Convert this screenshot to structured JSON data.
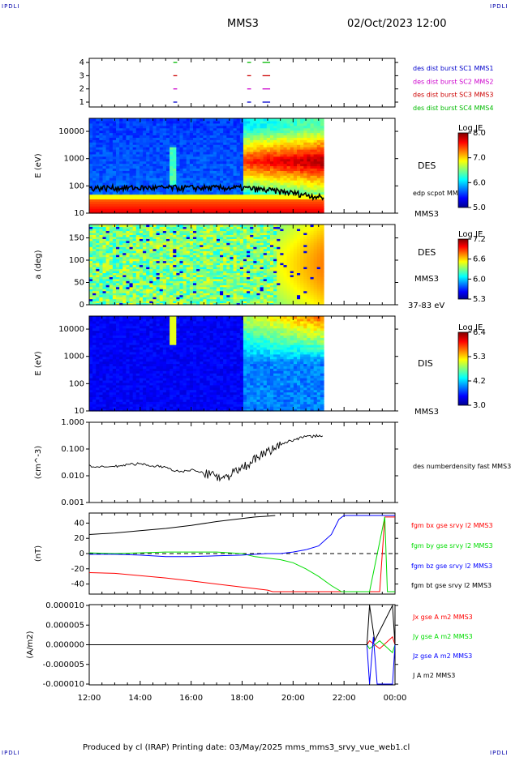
{
  "header": {
    "logo": "IPDLI",
    "spacecraft": "MMS3",
    "datetime": "02/Oct/2023 12:00"
  },
  "footer": {
    "text": "Produced by cl (IRAP)   Printing date: 03/May/2025   mms_mms3_srvy_vue_web1.cl"
  },
  "colors": {
    "burst_c1": "#0000cc",
    "burst_c2": "#cc00cc",
    "burst_c3": "#cc0000",
    "burst_c4": "#00bb00",
    "bx": "#ff0000",
    "by": "#00dd00",
    "bz": "#0000ff",
    "bt": "#000000"
  },
  "time_axis": {
    "ticks": [
      "12:00",
      "14:00",
      "16:00",
      "18:00",
      "20:00",
      "22:00",
      "00:00"
    ],
    "range_hours": [
      12,
      24
    ]
  },
  "chart_data": [
    {
      "type": "scatter",
      "panel": "burst-availability",
      "yticks": [
        "4",
        "3",
        "2",
        "1"
      ],
      "legend": [
        {
          "label": "des dist burst SC1 MMS1",
          "color": "#0000cc",
          "row": 1
        },
        {
          "label": "des dist burst SC2 MMS2",
          "color": "#cc00cc",
          "row": 2
        },
        {
          "label": "des dist burst SC3 MMS3",
          "color": "#cc0000",
          "row": 3
        },
        {
          "label": "des dist burst SC4 MMS4",
          "color": "#00bb00",
          "row": 4
        }
      ],
      "segments": [
        {
          "row": 4,
          "t0": 15.3,
          "t1": 15.45
        },
        {
          "row": 4,
          "t0": 18.2,
          "t1": 18.35
        },
        {
          "row": 4,
          "t0": 18.8,
          "t1": 19.1
        },
        {
          "row": 3,
          "t0": 15.3,
          "t1": 15.45
        },
        {
          "row": 3,
          "t0": 18.2,
          "t1": 18.35
        },
        {
          "row": 3,
          "t0": 18.8,
          "t1": 19.1
        },
        {
          "row": 2,
          "t0": 15.3,
          "t1": 15.45
        },
        {
          "row": 2,
          "t0": 18.2,
          "t1": 18.35
        },
        {
          "row": 2,
          "t0": 18.8,
          "t1": 19.1
        },
        {
          "row": 1,
          "t0": 15.3,
          "t1": 15.45
        },
        {
          "row": 1,
          "t0": 18.2,
          "t1": 18.35
        },
        {
          "row": 1,
          "t0": 18.8,
          "t1": 19.1
        }
      ]
    },
    {
      "type": "heatmap",
      "panel": "des-energy-spectrogram",
      "ylabel": "E (eV)",
      "yscale": "log",
      "ylim": [
        10,
        30000
      ],
      "yticks": [
        "10000",
        "1000",
        "100",
        "10"
      ],
      "label": "DES",
      "spacecraft_label": "MMS3",
      "overlay_label": "edp scpot MMS3",
      "colorbar": {
        "title": "Log JE",
        "ticks": [
          "8.0",
          "7.0",
          "6.0",
          "5.0"
        ],
        "range": [
          5.0,
          8.0
        ]
      },
      "data_end_hour": 21.2
    },
    {
      "type": "heatmap",
      "panel": "des-pitch-angle",
      "ylabel": "a (deg)",
      "ylim": [
        0,
        180
      ],
      "yticks": [
        "150",
        "100",
        "50",
        "0"
      ],
      "label": "DES",
      "spacecraft_label": "MMS3",
      "energy_range_label": "37-83 eV",
      "colorbar": {
        "title": "Log JE",
        "ticks": [
          "7.2",
          "6.6",
          "6.0",
          "5.3"
        ],
        "range": [
          5.3,
          7.2
        ]
      },
      "data_end_hour": 21.2
    },
    {
      "type": "heatmap",
      "panel": "dis-energy-spectrogram",
      "ylabel": "E (eV)",
      "yscale": "log",
      "ylim": [
        10,
        30000
      ],
      "yticks": [
        "10000",
        "1000",
        "100",
        "10"
      ],
      "label": "DIS",
      "spacecraft_label": "MMS3",
      "colorbar": {
        "title": "Log JE",
        "ticks": [
          "6.4",
          "5.3",
          "4.2",
          "3.0"
        ],
        "range": [
          3.0,
          6.4
        ]
      },
      "data_end_hour": 21.2
    },
    {
      "type": "line",
      "panel": "density",
      "ylabel": "(cm^-3)",
      "yscale": "log",
      "ylim": [
        0.001,
        1.0
      ],
      "yticks": [
        "1.000",
        "0.100",
        "0.010",
        "0.001"
      ],
      "series": [
        {
          "name": "des numberdensity fast MMS3",
          "color": "#000000",
          "x": [
            12.0,
            12.5,
            13.0,
            13.5,
            14.0,
            14.5,
            15.0,
            15.5,
            16.0,
            16.5,
            17.0,
            17.3,
            17.6,
            18.0,
            18.4,
            18.8,
            19.2,
            19.6,
            20.0,
            20.4,
            20.8,
            21.2
          ],
          "values": [
            0.023,
            0.021,
            0.022,
            0.026,
            0.028,
            0.024,
            0.02,
            0.014,
            0.017,
            0.012,
            0.01,
            0.008,
            0.012,
            0.018,
            0.035,
            0.06,
            0.1,
            0.16,
            0.22,
            0.28,
            0.3,
            0.32
          ]
        }
      ]
    },
    {
      "type": "line",
      "panel": "magnetic-field",
      "ylabel": "(nT)",
      "ylim": [
        -50,
        50
      ],
      "yticks": [
        "40",
        "20",
        "0",
        "-20",
        "-40"
      ],
      "series": [
        {
          "name": "fgm bx gse srvy l2 MMS3",
          "color": "#ff0000",
          "x": [
            12.0,
            13.0,
            14.0,
            15.0,
            16.0,
            17.0,
            18.0,
            18.5,
            19.0,
            19.2,
            23.0,
            23.4,
            23.6,
            23.9,
            24.0
          ],
          "values": [
            -25,
            -26,
            -29,
            -32,
            -36,
            -40,
            -44,
            -46,
            -48,
            -50,
            -50,
            -50,
            48,
            48,
            48
          ]
        },
        {
          "name": "fgm by gse srvy l2 MMS3",
          "color": "#00dd00",
          "x": [
            12.0,
            13.0,
            14.0,
            15.0,
            16.0,
            17.0,
            18.0,
            18.5,
            19.0,
            19.5,
            20.0,
            20.5,
            21.0,
            21.5,
            21.9,
            22.0,
            23.0,
            23.6,
            23.7,
            24.0
          ],
          "values": [
            1,
            0,
            1,
            2,
            2,
            2,
            0,
            -4,
            -6,
            -8,
            -12,
            -20,
            -30,
            -42,
            -50,
            -50,
            -50,
            48,
            -50,
            -50
          ]
        },
        {
          "name": "fgm bz gse srvy l2 MMS3",
          "color": "#0000ff",
          "x": [
            12.0,
            13.0,
            14.0,
            15.0,
            16.0,
            17.0,
            18.0,
            18.5,
            19.0,
            19.5,
            20.0,
            20.5,
            21.0,
            21.5,
            21.8,
            22.0,
            23.8,
            24.0
          ],
          "values": [
            -1,
            -1,
            -2,
            -4,
            -4,
            -3,
            -2,
            -1,
            0,
            0,
            2,
            5,
            10,
            25,
            45,
            50,
            50,
            50
          ]
        },
        {
          "name": "fgm bt gse srvy l2 MMS3",
          "color": "#000000",
          "x": [
            12.0,
            13.0,
            14.0,
            15.0,
            16.0,
            17.0,
            18.0,
            18.5,
            19.0,
            19.3
          ],
          "values": [
            25,
            27,
            30,
            33,
            37,
            42,
            46,
            48,
            49,
            50
          ]
        }
      ]
    },
    {
      "type": "line",
      "panel": "current-density",
      "ylabel": "(A/m2)",
      "ylim": [
        -1e-05,
        1e-05
      ],
      "yticks": [
        "0.000010",
        "0.000005",
        "0.000000",
        "-0.000005",
        "-0.000010"
      ],
      "series": [
        {
          "name": "Jx gse A m2 MMS3",
          "color": "#ff0000",
          "x": [
            12.0,
            22.9,
            23.0,
            23.4,
            23.9,
            24.0
          ],
          "values": [
            0,
            0,
            1e-06,
            -1e-06,
            2e-06,
            0
          ]
        },
        {
          "name": "Jy gse A m2 MMS3",
          "color": "#00dd00",
          "x": [
            12.0,
            22.9,
            23.0,
            23.4,
            23.9,
            24.0
          ],
          "values": [
            0,
            0,
            -1e-06,
            1e-06,
            -2e-06,
            0
          ]
        },
        {
          "name": "Jz gse A m2 MMS3",
          "color": "#0000ff",
          "x": [
            12.0,
            22.9,
            23.0,
            23.15,
            23.3,
            23.9,
            24.0
          ],
          "values": [
            0,
            0,
            -1e-05,
            2e-06,
            -1e-05,
            -1e-05,
            0
          ]
        },
        {
          "name": "J A m2 MMS3",
          "color": "#000000",
          "x": [
            12.0,
            22.9,
            23.0,
            23.2,
            23.9,
            24.0
          ],
          "values": [
            0,
            0,
            1e-05,
            1e-06,
            1e-05,
            0
          ]
        }
      ]
    }
  ]
}
